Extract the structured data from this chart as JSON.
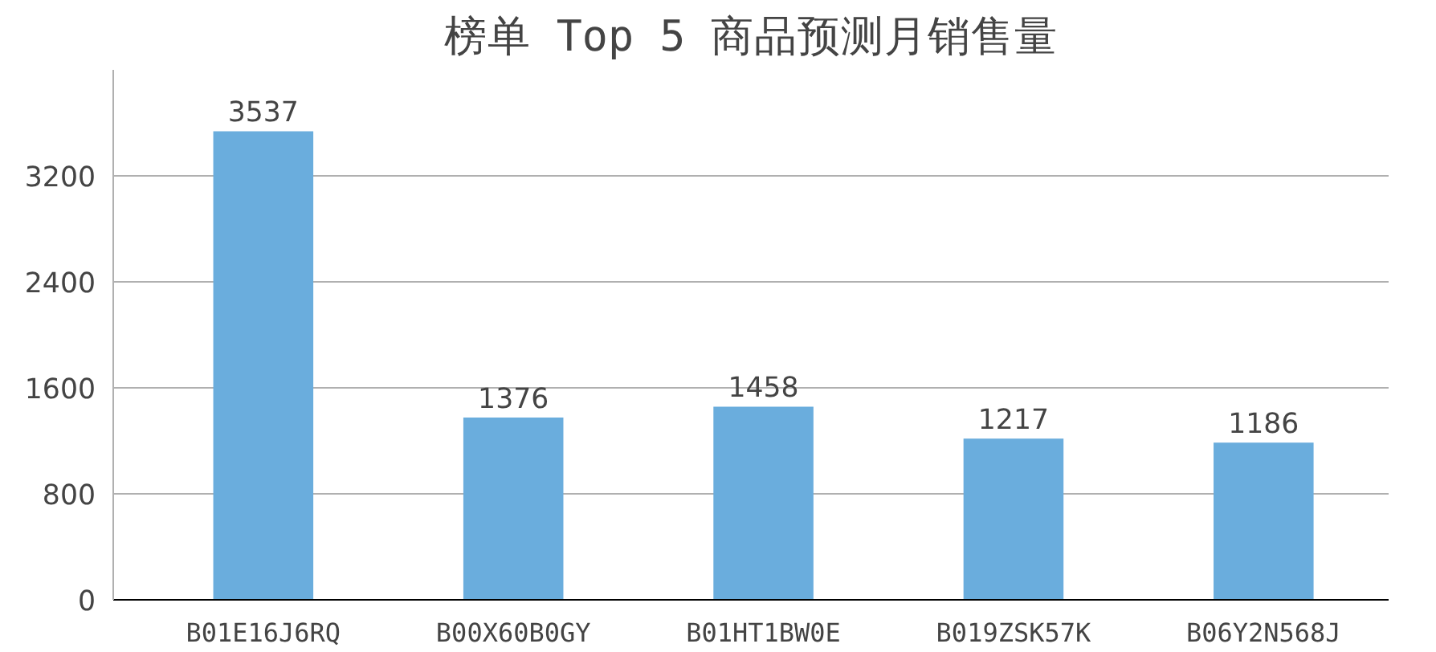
{
  "chart_data": {
    "type": "bar",
    "title": "榜单 Top 5 商品预测月销售量",
    "categories": [
      "B01E16J6RQ",
      "B00X60B0GY",
      "B01HT1BW0E",
      "B019ZSK57K",
      "B06Y2N568J"
    ],
    "values": [
      3537,
      1376,
      1458,
      1217,
      1186
    ],
    "color": "#6aaddd",
    "ylim": [
      0,
      4000
    ],
    "yticks": [
      0,
      800,
      1600,
      2400,
      3200
    ],
    "grid": "y",
    "data_labels": true
  }
}
